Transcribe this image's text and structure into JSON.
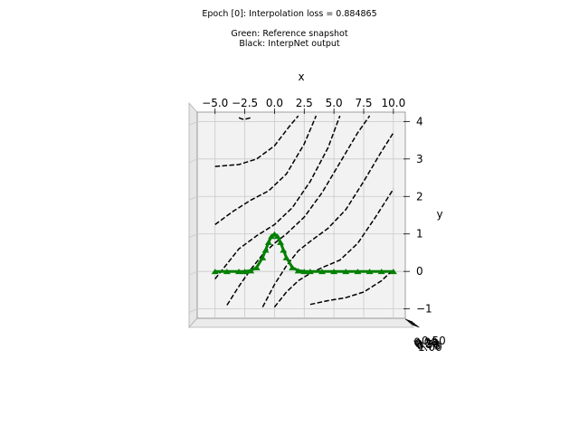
{
  "chart_data": {
    "type": "line",
    "title": "Epoch [0]: Interpolation loss = 0.884865",
    "subtitle_lines": [
      "Green: Reference snapshot",
      "Black: InterpNet output"
    ],
    "xlabel": "x",
    "ylabel": "y",
    "xlim": [
      -6.5,
      11.0
    ],
    "ylim": [
      -1.25,
      4.25
    ],
    "x_ticks": [
      -5.0,
      -2.5,
      0.0,
      2.5,
      5.0,
      7.5,
      10.0
    ],
    "x_tick_labels": [
      "−5.0",
      "−2.5",
      "0.0",
      "2.5",
      "5.0",
      "7.5",
      "10.0"
    ],
    "y_ticks": [
      -1,
      0,
      1,
      2,
      3,
      4
    ],
    "y_tick_labels": [
      "−1",
      "0",
      "1",
      "2",
      "3",
      "4"
    ],
    "z_tick_labels": [
      "−0.50",
      "0.00",
      "0.25",
      "0.50",
      "0.75",
      "1.00"
    ],
    "grid": true,
    "series": [
      {
        "name": "Reference snapshot",
        "color": "#008000",
        "style": "solid",
        "x": [
          -5.0,
          -4.0,
          -3.0,
          -2.5,
          -2.0,
          -1.5,
          -1.0,
          -0.75,
          -0.5,
          -0.25,
          0.0,
          0.25,
          0.5,
          0.75,
          1.0,
          1.5,
          2.0,
          2.5,
          3.0,
          4.0,
          5.0,
          6.0,
          7.0,
          8.0,
          9.0,
          10.0
        ],
        "y": [
          0.0,
          0.0,
          0.0,
          0.002,
          0.018,
          0.105,
          0.368,
          0.57,
          0.78,
          0.94,
          1.0,
          0.94,
          0.78,
          0.57,
          0.368,
          0.105,
          0.018,
          0.002,
          0.0,
          0.0,
          0.0,
          0.0,
          0.0,
          0.0,
          0.0,
          0.0
        ]
      },
      {
        "name": "InterpNet output",
        "color": "#000000",
        "style": "dashed",
        "contours": [
          {
            "x": [
              -3.0,
              -2.6,
              -2.0
            ],
            "y": [
              4.1,
              4.05,
              4.1
            ]
          },
          {
            "x": [
              -5.0,
              -3.0,
              -1.5,
              0.0,
              1.2,
              2.0
            ],
            "y": [
              2.8,
              2.85,
              3.0,
              3.35,
              3.85,
              4.15
            ]
          },
          {
            "x": [
              -5.0,
              -3.5,
              -2.0,
              -0.5,
              1.0,
              2.5,
              3.5
            ],
            "y": [
              1.25,
              1.6,
              1.9,
              2.15,
              2.6,
              3.4,
              4.15
            ]
          },
          {
            "x": [
              -5.0,
              -4.0,
              -3.0,
              -1.5,
              0.0,
              1.5,
              3.0,
              4.5,
              5.5
            ],
            "y": [
              -0.2,
              0.2,
              0.6,
              0.95,
              1.25,
              1.7,
              2.4,
              3.3,
              4.15
            ]
          },
          {
            "x": [
              -4.0,
              -3.0,
              -2.0,
              -1.0,
              0.0,
              1.0,
              2.5,
              4.0,
              5.5,
              7.0,
              8.0
            ],
            "y": [
              -0.9,
              -0.4,
              0.05,
              0.45,
              0.75,
              1.0,
              1.45,
              2.1,
              2.9,
              3.7,
              4.15
            ]
          },
          {
            "x": [
              -1.0,
              0.0,
              1.0,
              2.0,
              3.0,
              4.5,
              6.0,
              7.5,
              9.0,
              10.0
            ],
            "y": [
              -0.95,
              -0.35,
              0.15,
              0.55,
              0.8,
              1.15,
              1.65,
              2.4,
              3.2,
              3.7
            ]
          },
          {
            "x": [
              0.0,
              1.0,
              2.0,
              3.0,
              4.0,
              5.5,
              7.0,
              8.5,
              10.0
            ],
            "y": [
              -0.95,
              -0.55,
              -0.25,
              -0.05,
              0.1,
              0.3,
              0.75,
              1.45,
              2.2
            ]
          },
          {
            "x": [
              3.0,
              4.5,
              6.0,
              7.5,
              9.0,
              10.0
            ],
            "y": [
              -0.88,
              -0.78,
              -0.7,
              -0.55,
              -0.25,
              0.05
            ]
          }
        ]
      }
    ]
  }
}
